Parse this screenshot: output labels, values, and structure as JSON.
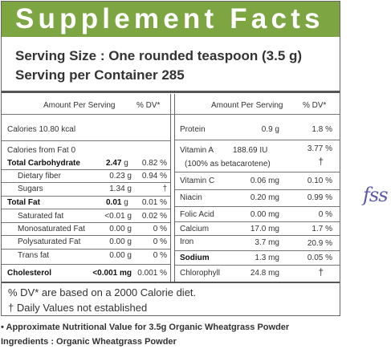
{
  "title": "Supplement Facts",
  "serving_size": "Serving Size : One rounded teaspoon (3.5 g)",
  "servings": "Serving per Container 285",
  "left_header": {
    "amount": "Amount Per Serving",
    "dv": "% DV*"
  },
  "right_header": {
    "amount": "Amount Per Serving",
    "dv": "% DV*"
  },
  "calories": "Calories 10.80 kcal",
  "calories_fat": "Calories from Fat 0",
  "left_rows": [
    {
      "name": "Total Carbohydrate",
      "amount": "2.47",
      "unit": "g",
      "dv": "0.82 %"
    },
    {
      "name": "Dietary fiber",
      "amount": "0.23 g",
      "dv": "0.94 %"
    },
    {
      "name": "Sugars",
      "amount": "1.34 g",
      "dv": "†"
    },
    {
      "name": "Total Fat",
      "amount": "0.01",
      "unit": "g",
      "dv": "0.01 %"
    },
    {
      "name": "Saturated fat",
      "amount": "<0.01 g",
      "dv": "0.02 %"
    },
    {
      "name": "Monosaturated Fat",
      "amount": "0.00 g",
      "dv": "0 %"
    },
    {
      "name": "Polysaturated Fat",
      "amount": "0.00 g",
      "dv": "0 %"
    },
    {
      "name": "Trans fat",
      "amount": "0.00 g",
      "dv": "0 %"
    },
    {
      "name": "Cholesterol",
      "amount": "<0.001 mg",
      "dv": "0.001 %"
    }
  ],
  "right_rows": [
    {
      "name": "Protein",
      "amount": "0.9 g",
      "dv": "1.8 %"
    },
    {
      "name": "Vitamin A",
      "amount": "188.69 IU",
      "dv": "3.77 %",
      "note": "(100% as betacarotene)",
      "dv2": "†"
    },
    {
      "name": "Vitamin C",
      "amount": "0.06 mg",
      "dv": "0.10 %"
    },
    {
      "name": "Niacin",
      "amount": "0.20 mg",
      "dv": "0.99 %"
    },
    {
      "name": "Folic Acid",
      "amount": "0.00 mg",
      "dv": "0 %"
    },
    {
      "name": "Calcium",
      "amount": "17.0 mg",
      "dv": "1.7 %"
    },
    {
      "name": "Iron",
      "amount": "3.7 mg",
      "dv": "20.9 %"
    },
    {
      "name": "Sodium",
      "amount": "1.3 mg",
      "dv": "0.05 %"
    },
    {
      "name": "Chlorophyll",
      "amount": "24.8 mg",
      "dv": "†"
    }
  ],
  "footnote1": "% DV* are based on a 2000 Calorie diet.",
  "footnote2": "† Daily Values not established",
  "approx_note": "• Approximate Nutritional Value for 3.5g Organic Wheatgrass Powder",
  "ingredients": "Ingredients : Organic Wheatgrass Powder",
  "logo_text": "fss",
  "colors": {
    "banner": "#7da542",
    "logo": "#5a58a8"
  }
}
